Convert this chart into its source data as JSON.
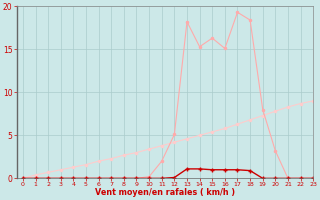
{
  "x_values": [
    0,
    1,
    2,
    3,
    4,
    5,
    6,
    7,
    8,
    9,
    10,
    11,
    12,
    13,
    14,
    15,
    16,
    17,
    18,
    19,
    20,
    21,
    22,
    23
  ],
  "line1_y": [
    0,
    0,
    0,
    0,
    0,
    0,
    0,
    0,
    0,
    0,
    0,
    0,
    0.1,
    1.1,
    1.1,
    1.0,
    1.0,
    1.0,
    0.9,
    0,
    0,
    0,
    0,
    0
  ],
  "line2_y": [
    0,
    0,
    0,
    0,
    0,
    0,
    0,
    0,
    0,
    0,
    0.2,
    2.0,
    5.1,
    18.2,
    15.3,
    16.3,
    15.1,
    19.3,
    18.4,
    8.0,
    3.2,
    0,
    0,
    0
  ],
  "line3_y": [
    0,
    0.4,
    0.7,
    1.0,
    1.3,
    1.6,
    2.0,
    2.3,
    2.7,
    3.0,
    3.4,
    3.8,
    4.2,
    4.6,
    5.0,
    5.4,
    5.8,
    6.3,
    6.8,
    7.3,
    7.8,
    8.3,
    8.7,
    9.0
  ],
  "line1_color": "#cc0000",
  "line2_color": "#ffaaaa",
  "line3_color": "#ffcccc",
  "bg_color": "#cce8e8",
  "grid_color": "#aacccc",
  "axis_label": "Vent moyen/en rafales ( km/h )",
  "xlabel_color": "#cc0000",
  "tick_color": "#cc0000",
  "xlim": [
    -0.5,
    23
  ],
  "ylim": [
    0,
    20
  ],
  "yticks": [
    0,
    5,
    10,
    15,
    20
  ],
  "xticks": [
    0,
    1,
    2,
    3,
    4,
    5,
    6,
    7,
    8,
    9,
    10,
    11,
    12,
    13,
    14,
    15,
    16,
    17,
    18,
    19,
    20,
    21,
    22,
    23
  ]
}
